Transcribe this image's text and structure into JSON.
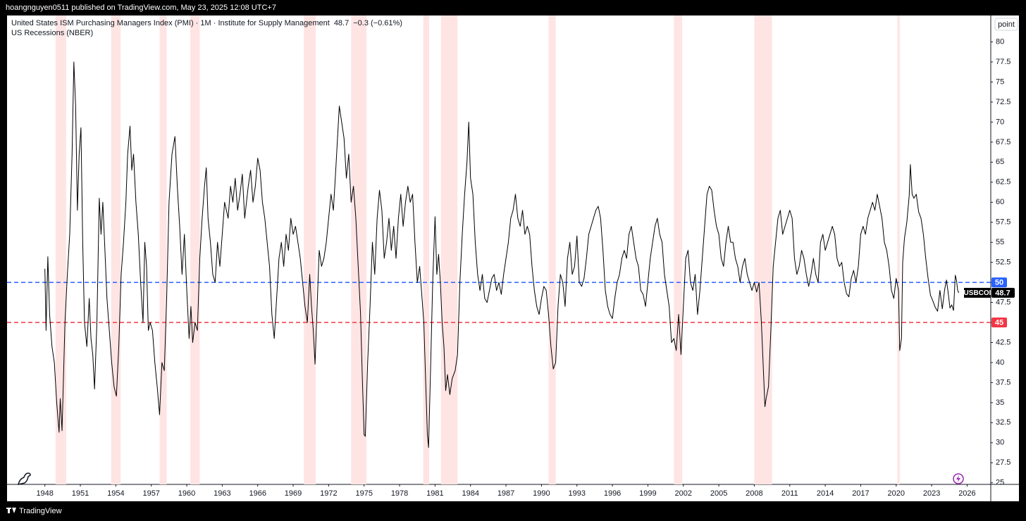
{
  "header": {
    "publisher": "hoangnguyen0511 published on TradingView.com, May 23, 2025 12:08 UTC+7"
  },
  "chart_data": {
    "type": "line",
    "series": [
      {
        "name": "United States ISM Purchasing Managers Index (PMI) · 1M · Institute for Supply Management",
        "color": "#000000",
        "values": [
          51.7,
          44,
          53.2,
          46,
          42,
          40,
          35,
          31.3,
          35.5,
          31.5,
          45,
          51,
          56,
          66,
          77.5,
          72,
          59,
          66,
          69.3,
          55,
          45,
          42,
          48,
          43,
          41,
          36.7,
          45,
          60.5,
          56,
          60,
          55,
          48,
          44,
          40,
          37,
          35.8,
          42,
          51,
          55,
          60,
          66,
          69.5,
          64,
          66,
          60,
          56,
          50,
          45,
          55,
          52,
          44,
          45,
          44,
          40,
          37,
          33.5,
          40,
          39,
          48,
          60,
          66,
          68.2,
          62,
          57,
          51,
          56,
          49,
          43,
          47,
          42.5,
          45,
          44,
          53,
          58,
          62,
          64.3,
          58,
          55,
          51,
          50,
          55,
          52,
          56,
          60,
          58,
          62,
          60,
          63,
          59,
          61,
          63.5,
          58,
          62,
          64,
          60,
          62,
          65.5,
          64,
          60,
          58,
          55,
          52,
          46,
          43,
          48,
          53,
          55,
          52,
          56,
          54,
          58,
          56,
          57,
          55,
          53,
          50,
          47,
          45,
          51,
          47,
          44,
          39.8,
          46,
          54,
          52,
          53,
          55,
          58,
          61,
          59,
          64,
          68,
          72,
          70,
          68,
          63,
          66,
          60,
          62,
          58,
          52,
          46,
          38,
          31,
          30.8,
          40,
          47,
          55,
          51,
          58,
          61.5,
          59,
          53,
          55,
          58,
          54,
          57,
          53,
          58,
          61,
          57,
          60,
          62,
          60,
          61,
          55,
          50,
          52,
          48,
          45,
          38,
          31,
          29.4,
          38,
          50,
          58.2,
          51,
          53.5,
          50,
          45,
          42,
          36.5,
          38.5,
          36,
          38,
          39,
          41,
          50,
          56,
          61,
          65,
          70,
          63,
          61,
          55,
          51,
          49,
          51,
          48,
          47.5,
          49,
          50.5,
          51,
          49,
          50,
          48.5,
          51,
          53,
          55,
          58,
          59,
          61,
          58,
          57,
          59,
          56,
          57,
          56,
          52,
          49,
          47,
          46,
          48,
          49.5,
          49,
          46,
          42,
          39.2,
          40,
          47,
          51,
          50,
          47,
          53,
          55,
          51,
          52,
          55.8,
          50,
          49.5,
          50.5,
          53,
          56,
          57,
          58,
          59,
          59.5,
          58,
          54,
          49,
          47,
          46,
          45.5,
          48,
          50,
          51,
          53,
          54,
          53,
          56,
          57,
          55,
          53,
          52,
          49,
          48.5,
          47,
          50,
          53,
          55,
          57,
          58,
          56,
          55,
          51,
          49,
          47,
          42.5,
          43,
          41.5,
          46,
          41,
          47,
          53,
          54,
          50,
          49,
          51,
          46,
          49,
          53,
          57,
          61,
          62,
          61.5,
          59,
          57,
          56,
          53,
          52,
          55,
          57,
          55,
          55,
          53,
          52,
          50,
          52,
          53,
          51,
          50,
          49,
          50,
          48.8,
          50,
          45,
          38,
          34.5,
          35.5,
          37,
          44,
          52,
          55,
          58,
          59,
          56,
          57,
          58,
          59,
          58,
          53,
          51,
          52,
          54,
          53,
          51,
          49.5,
          51,
          53,
          51,
          50,
          55,
          56,
          54,
          55,
          56,
          57,
          56,
          53,
          52,
          52.5,
          50,
          48.6,
          48.2,
          50.5,
          51.5,
          50,
          52,
          56,
          57,
          56,
          58,
          59,
          60,
          59,
          61,
          59.5,
          58,
          55,
          54,
          52,
          49,
          48,
          50.5,
          49,
          41.5,
          43,
          52.5,
          55.5,
          57.5,
          60.8,
          64.7,
          61,
          60.5,
          61,
          58.8,
          58,
          56,
          53,
          50.5,
          48.4,
          47.7,
          46.9,
          46.4,
          49,
          46.7,
          49.1,
          50.3,
          48.7,
          46.8,
          47.2,
          46.5,
          50.9,
          50.3,
          49,
          48.7
        ]
      }
    ],
    "x": [
      1948.0,
      1948.1,
      1948.25,
      1948.4,
      1948.6,
      1948.8,
      1949.0,
      1949.2,
      1949.3,
      1949.45,
      1949.7,
      1949.9,
      1950.1,
      1950.3,
      1950.45,
      1950.6,
      1950.75,
      1950.9,
      1951.05,
      1951.2,
      1951.35,
      1951.55,
      1951.75,
      1951.9,
      1952.05,
      1952.2,
      1952.4,
      1952.6,
      1952.75,
      1952.9,
      1953.05,
      1953.25,
      1953.45,
      1953.65,
      1953.85,
      1954.05,
      1954.25,
      1954.45,
      1954.65,
      1954.85,
      1955.0,
      1955.2,
      1955.35,
      1955.5,
      1955.7,
      1955.9,
      1956.1,
      1956.3,
      1956.45,
      1956.6,
      1956.75,
      1956.9,
      1957.1,
      1957.3,
      1957.5,
      1957.7,
      1957.9,
      1958.1,
      1958.3,
      1958.5,
      1958.75,
      1959.0,
      1959.2,
      1959.4,
      1959.6,
      1959.8,
      1960.0,
      1960.2,
      1960.35,
      1960.5,
      1960.7,
      1960.9,
      1961.1,
      1961.3,
      1961.5,
      1961.65,
      1961.8,
      1962.0,
      1962.2,
      1962.4,
      1962.6,
      1962.8,
      1963.0,
      1963.2,
      1963.5,
      1963.7,
      1963.9,
      1964.1,
      1964.3,
      1964.5,
      1964.7,
      1964.9,
      1965.2,
      1965.4,
      1965.6,
      1965.8,
      1966.0,
      1966.2,
      1966.4,
      1966.6,
      1966.8,
      1967.0,
      1967.2,
      1967.4,
      1967.6,
      1967.8,
      1968.0,
      1968.2,
      1968.4,
      1968.6,
      1968.8,
      1969.0,
      1969.2,
      1969.4,
      1969.6,
      1969.8,
      1970.0,
      1970.2,
      1970.4,
      1970.55,
      1970.7,
      1970.85,
      1971.0,
      1971.2,
      1971.4,
      1971.6,
      1971.8,
      1972.0,
      1972.2,
      1972.4,
      1972.6,
      1972.75,
      1972.9,
      1973.1,
      1973.3,
      1973.5,
      1973.7,
      1973.9,
      1974.1,
      1974.3,
      1974.5,
      1974.7,
      1974.85,
      1975.0,
      1975.1,
      1975.3,
      1975.5,
      1975.7,
      1975.9,
      1976.1,
      1976.3,
      1976.5,
      1976.7,
      1976.9,
      1977.1,
      1977.3,
      1977.5,
      1977.7,
      1977.9,
      1978.1,
      1978.3,
      1978.5,
      1978.7,
      1978.9,
      1979.1,
      1979.3,
      1979.5,
      1979.7,
      1979.9,
      1980.05,
      1980.2,
      1980.35,
      1980.45,
      1980.6,
      1980.8,
      1981.0,
      1981.15,
      1981.3,
      1981.45,
      1981.6,
      1981.75,
      1981.9,
      1982.05,
      1982.25,
      1982.45,
      1982.7,
      1982.9,
      1983.1,
      1983.3,
      1983.5,
      1983.7,
      1983.85,
      1984.0,
      1984.2,
      1984.4,
      1984.6,
      1984.8,
      1985.0,
      1985.2,
      1985.4,
      1985.6,
      1985.8,
      1986.0,
      1986.2,
      1986.4,
      1986.6,
      1986.8,
      1987.0,
      1987.2,
      1987.4,
      1987.6,
      1987.8,
      1988.0,
      1988.2,
      1988.4,
      1988.6,
      1988.8,
      1989.0,
      1989.2,
      1989.4,
      1989.6,
      1989.8,
      1990.0,
      1990.2,
      1990.4,
      1990.6,
      1990.8,
      1991.0,
      1991.2,
      1991.4,
      1991.6,
      1991.8,
      1992.0,
      1992.2,
      1992.4,
      1992.6,
      1992.8,
      1993.0,
      1993.2,
      1993.4,
      1993.6,
      1993.8,
      1994.0,
      1994.2,
      1994.4,
      1994.6,
      1994.8,
      1995.0,
      1995.2,
      1995.4,
      1995.6,
      1995.8,
      1996.0,
      1996.2,
      1996.4,
      1996.6,
      1996.8,
      1997.0,
      1997.2,
      1997.4,
      1997.6,
      1997.8,
      1998.0,
      1998.2,
      1998.4,
      1998.6,
      1998.8,
      1999.0,
      1999.2,
      1999.4,
      1999.6,
      1999.8,
      2000.0,
      2000.2,
      2000.4,
      2000.6,
      2000.8,
      2001.0,
      2001.2,
      2001.4,
      2001.6,
      2001.8,
      2002.0,
      2002.2,
      2002.4,
      2002.6,
      2002.8,
      2003.0,
      2003.2,
      2003.4,
      2003.6,
      2003.8,
      2004.0,
      2004.2,
      2004.4,
      2004.6,
      2004.8,
      2005.0,
      2005.2,
      2005.4,
      2005.6,
      2005.8,
      2006.0,
      2006.2,
      2006.4,
      2006.6,
      2006.8,
      2007.0,
      2007.2,
      2007.4,
      2007.6,
      2007.8,
      2008.0,
      2008.2,
      2008.4,
      2008.6,
      2008.8,
      2008.9,
      2009.0,
      2009.2,
      2009.4,
      2009.6,
      2009.8,
      2010.0,
      2010.2,
      2010.4,
      2010.6,
      2010.8,
      2011.0,
      2011.2,
      2011.4,
      2011.6,
      2011.8,
      2012.0,
      2012.2,
      2012.4,
      2012.6,
      2012.8,
      2013.0,
      2013.2,
      2013.4,
      2013.6,
      2013.8,
      2014.0,
      2014.2,
      2014.4,
      2014.6,
      2014.8,
      2015.0,
      2015.2,
      2015.4,
      2015.6,
      2015.8,
      2016.0,
      2016.2,
      2016.4,
      2016.6,
      2016.8,
      2017.0,
      2017.2,
      2017.4,
      2017.6,
      2017.8,
      2018.0,
      2018.2,
      2018.4,
      2018.6,
      2018.8,
      2019.0,
      2019.2,
      2019.4,
      2019.6,
      2019.8,
      2020.0,
      2020.2,
      2020.3,
      2020.45,
      2020.55,
      2020.7,
      2020.9,
      2021.1,
      2021.2,
      2021.35,
      2021.5,
      2021.7,
      2021.9,
      2022.1,
      2022.3,
      2022.5,
      2022.7,
      2022.9,
      2023.1,
      2023.3,
      2023.5,
      2023.7,
      2023.9,
      2024.1,
      2024.25,
      2024.4,
      2024.55,
      2024.7,
      2024.85,
      2025.0,
      2025.1,
      2025.2,
      2025.3
    ],
    "last_value": 48.7,
    "change_label": "−0.3 (−0.61%)",
    "symbol": "USBCOI",
    "y_unit": "point",
    "recessions": {
      "name": "US Recessions (NBER)",
      "color": "#ffe4e4",
      "ranges": [
        [
          1948.9,
          1949.8
        ],
        [
          1953.6,
          1954.4
        ],
        [
          1957.7,
          1958.3
        ],
        [
          1960.3,
          1961.1
        ],
        [
          1969.9,
          1970.9
        ],
        [
          1973.9,
          1975.2
        ],
        [
          1980.0,
          1980.5
        ],
        [
          1981.5,
          1982.9
        ],
        [
          1990.6,
          1991.2
        ],
        [
          2001.2,
          2001.9
        ],
        [
          2008.0,
          2009.5
        ],
        [
          2020.1,
          2020.3
        ]
      ]
    },
    "hlines": [
      {
        "value": 50,
        "color": "#2962ff"
      },
      {
        "value": 45,
        "color": "#f23645"
      }
    ],
    "xlim": [
      1944.8,
      2028.0
    ],
    "ylim": [
      24.8,
      83.3
    ],
    "xticks": [
      1948,
      1951,
      1954,
      1957,
      1960,
      1963,
      1966,
      1969,
      1972,
      1975,
      1978,
      1981,
      1984,
      1987,
      1990,
      1993,
      1996,
      1999,
      2002,
      2005,
      2008,
      2011,
      2014,
      2017,
      2020,
      2023,
      2026
    ],
    "yticks": [
      25,
      27.5,
      30,
      32.5,
      35,
      37.5,
      40,
      42.5,
      45,
      47.5,
      50,
      52.5,
      55,
      57.5,
      60,
      62.5,
      65,
      67.5,
      70,
      72.5,
      75,
      77.5,
      80
    ],
    "grid": false
  },
  "footer": {
    "brand": "TradingView"
  }
}
